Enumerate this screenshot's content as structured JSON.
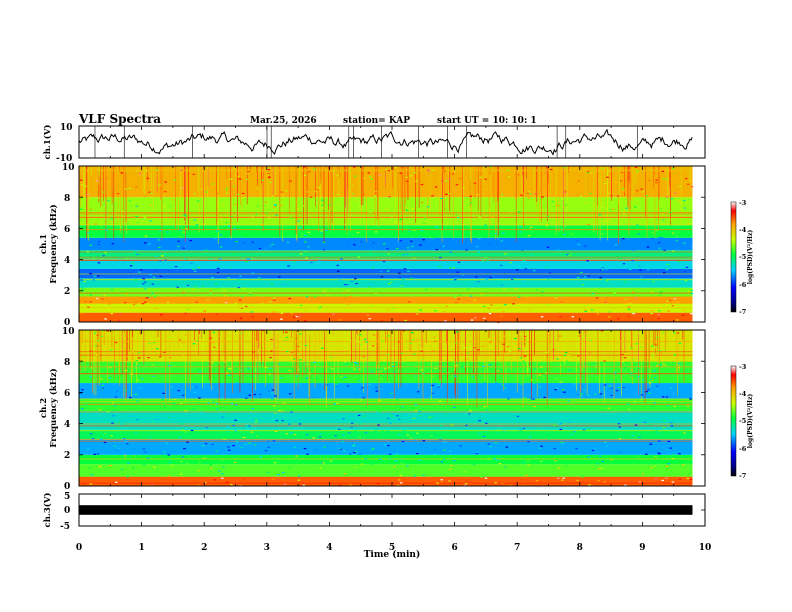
{
  "header": {
    "title": "VLF Spectra",
    "date": "Mar.25, 2026",
    "station": "station= KAP",
    "start_ut": "start  UT =   10: 10: 1"
  },
  "chart_data": [
    {
      "id": "ch1-waveform",
      "type": "line",
      "ylabel": "ch.1(V)",
      "ylim": [
        -10,
        10
      ],
      "yticks": [
        "10",
        "-10"
      ],
      "xlim": [
        0,
        10
      ],
      "data_end_min": 9.8,
      "series": [
        {
          "name": "ch.1",
          "mean": 0,
          "amplitude": 7,
          "color": "#000000"
        }
      ]
    },
    {
      "id": "ch1-spectrogram",
      "type": "heatmap",
      "ylabel_line1": "ch.1",
      "ylabel_line2": "Frequency (kHz)",
      "ylim": [
        0,
        10
      ],
      "yticks": [
        "0",
        "2",
        "4",
        "6",
        "8",
        "10"
      ],
      "xlim": [
        0,
        10
      ],
      "data_end_min": 9.8,
      "colorbar": {
        "label": "log(PSD)(V²/Hz)",
        "range": [
          -7,
          -3
        ],
        "ticks": [
          "-3",
          "-4",
          "-5",
          "-6",
          "-7"
        ]
      },
      "bands": [
        {
          "from_khz": 0.0,
          "to_khz": 0.6,
          "log_psd": -3.6
        },
        {
          "from_khz": 0.6,
          "to_khz": 1.2,
          "log_psd": -4.3
        },
        {
          "from_khz": 1.2,
          "to_khz": 1.6,
          "log_psd": -3.8
        },
        {
          "from_khz": 1.6,
          "to_khz": 2.2,
          "log_psd": -4.6
        },
        {
          "from_khz": 2.2,
          "to_khz": 2.8,
          "log_psd": -5.3
        },
        {
          "from_khz": 2.8,
          "to_khz": 3.4,
          "log_psd": -5.8
        },
        {
          "from_khz": 3.4,
          "to_khz": 4.0,
          "log_psd": -5.4
        },
        {
          "from_khz": 4.0,
          "to_khz": 4.6,
          "log_psd": -5.1
        },
        {
          "from_khz": 4.6,
          "to_khz": 5.4,
          "log_psd": -5.7
        },
        {
          "from_khz": 5.4,
          "to_khz": 6.2,
          "log_psd": -4.9
        },
        {
          "from_khz": 6.2,
          "to_khz": 8.0,
          "log_psd": -4.5
        },
        {
          "from_khz": 8.0,
          "to_khz": 10.0,
          "log_psd": -3.9
        }
      ]
    },
    {
      "id": "ch2-spectrogram",
      "type": "heatmap",
      "ylabel_line1": "ch.2",
      "ylabel_line2": "Frequency (kHz)",
      "ylim": [
        0,
        10
      ],
      "yticks": [
        "0",
        "2",
        "4",
        "6",
        "8",
        "10"
      ],
      "xlim": [
        0,
        10
      ],
      "data_end_min": 9.8,
      "colorbar": {
        "label": "log(PSD)(V²/Hz)",
        "range": [
          -7,
          -3
        ],
        "ticks": [
          "-3",
          "-4",
          "-5",
          "-6",
          "-7"
        ]
      },
      "bands": [
        {
          "from_khz": 0.0,
          "to_khz": 0.6,
          "log_psd": -3.6
        },
        {
          "from_khz": 0.6,
          "to_khz": 1.4,
          "log_psd": -4.7
        },
        {
          "from_khz": 1.4,
          "to_khz": 2.0,
          "log_psd": -4.9
        },
        {
          "from_khz": 2.0,
          "to_khz": 3.0,
          "log_psd": -5.6
        },
        {
          "from_khz": 3.0,
          "to_khz": 3.6,
          "log_psd": -5.0
        },
        {
          "from_khz": 3.6,
          "to_khz": 4.8,
          "log_psd": -5.3
        },
        {
          "from_khz": 4.8,
          "to_khz": 5.6,
          "log_psd": -4.8
        },
        {
          "from_khz": 5.6,
          "to_khz": 6.6,
          "log_psd": -5.6
        },
        {
          "from_khz": 6.6,
          "to_khz": 8.0,
          "log_psd": -4.8
        },
        {
          "from_khz": 8.0,
          "to_khz": 10.0,
          "log_psd": -4.2
        }
      ]
    },
    {
      "id": "ch3-waveform",
      "type": "line",
      "ylabel": "ch.3(V)",
      "ylim": [
        -5,
        5
      ],
      "yticks": [
        "5",
        "0",
        "-5"
      ],
      "xlim": [
        0,
        10
      ],
      "xlabel": "Time (min)",
      "xticks": [
        "0",
        "1",
        "2",
        "3",
        "4",
        "5",
        "6",
        "7",
        "8",
        "9",
        "10"
      ],
      "data_end_min": 9.8,
      "series": [
        {
          "name": "ch.3",
          "mean": 0,
          "amplitude": 0.3,
          "color": "#000000"
        }
      ]
    }
  ]
}
